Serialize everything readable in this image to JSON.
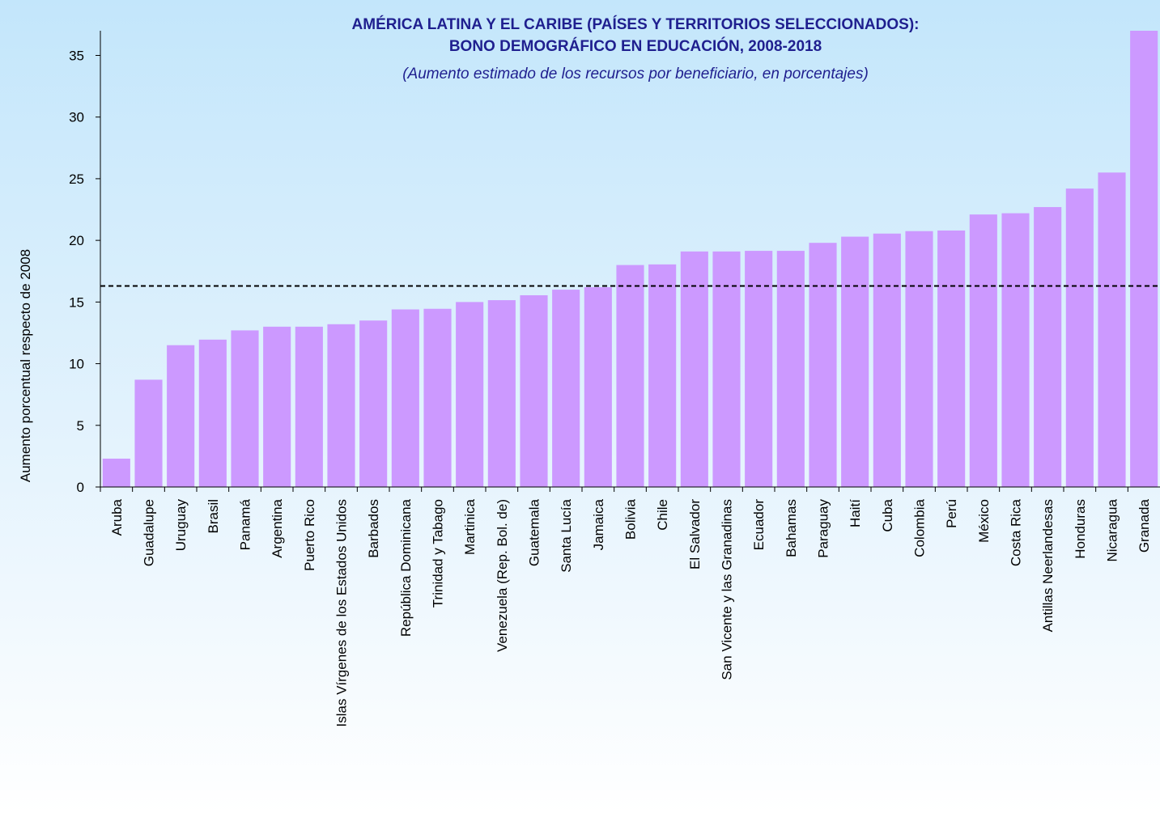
{
  "chart_data": {
    "type": "bar",
    "title": "AMÉRICA LATINA Y EL CARIBE (PAÍSES Y TERRITORIOS SELECCIONADOS):",
    "title_line2": "BONO DEMOGRÁFICO EN EDUCACIÓN, 2008-2018",
    "subtitle": "(Aumento estimado de los recursos por beneficiario, en porcentajes)",
    "y_label": "Aumento porcentual respecto de 2008",
    "categories": [
      "Aruba",
      "Guadalupe",
      "Uruguay",
      "Brasil",
      "Panamá",
      "Argentina",
      "Puerto Rico",
      "Islas Vírgenes de los Estados Unidos",
      "Barbados",
      "República Dominicana",
      "Trinidad y Tabago",
      "Martinica",
      "Venezuela (Rep. Bol. de)",
      "Guatemala",
      "Santa Lucía",
      "Jamaica",
      "Bolivia",
      "Chile",
      "El Salvador",
      "San Vicente y las Granadinas",
      "Ecuador",
      "Bahamas",
      "Paraguay",
      "Haití",
      "Cuba",
      "Colombia",
      "Perú",
      "México",
      "Costa Rica",
      "Antillas Neerlandesas",
      "Honduras",
      "Nicaragua",
      "Granada"
    ],
    "values": [
      2.3,
      8.7,
      11.5,
      11.95,
      12.7,
      13.0,
      13.0,
      13.2,
      13.5,
      14.4,
      14.45,
      15.0,
      15.15,
      15.55,
      16.0,
      16.2,
      18.0,
      18.05,
      19.1,
      19.1,
      19.15,
      19.15,
      19.8,
      20.3,
      20.55,
      20.75,
      20.8,
      22.1,
      22.2,
      22.7,
      24.2,
      25.5,
      37
    ],
    "color": "#cc99ff",
    "reference_line": 16.3,
    "ylim": [
      0,
      37
    ],
    "yticks": [
      0,
      5,
      10,
      15,
      20,
      25,
      30,
      35
    ],
    "grid": false
  }
}
